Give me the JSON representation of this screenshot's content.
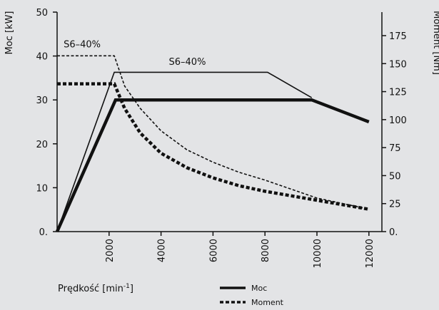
{
  "chart_data": {
    "type": "line",
    "title": "",
    "xlabel": "Prędkość [min",
    "xlabel_sup": "-1",
    "xlabel_close": "]",
    "ylabel_left": "Moc [kW]",
    "ylabel_right": "Moment [Nm]",
    "x_range": [
      0,
      12500
    ],
    "y_left_range": [
      0,
      50
    ],
    "y_right_range": [
      0,
      196
    ],
    "x_ticks": [
      "2000",
      "4000",
      "6000",
      "8000",
      "10000",
      "12000"
    ],
    "y_left_ticks": [
      "0.",
      "10",
      "20",
      "30",
      "40",
      "50"
    ],
    "y_right_ticks": [
      "0.",
      "25",
      "50",
      "75",
      "100",
      "125",
      "150",
      "175"
    ],
    "series": [
      {
        "name": "Moc",
        "axis": "left",
        "style": "solid-thick",
        "x": [
          0,
          2250,
          9800,
          12000
        ],
        "y": [
          0,
          30,
          30,
          25
        ]
      },
      {
        "name": "",
        "axis": "left",
        "style": "solid-thin",
        "x": [
          0,
          2200,
          8100,
          9800
        ],
        "y": [
          0,
          36.3,
          36.3,
          30.5
        ]
      },
      {
        "name": "Moment",
        "axis": "right",
        "style": "dashed-thick",
        "x": [
          0,
          2200,
          2600,
          3200,
          4000,
          5000,
          6000,
          7000,
          8000,
          9000,
          10000,
          11000,
          12000
        ],
        "y": [
          132,
          132,
          110,
          88,
          70,
          57,
          48,
          41,
          36,
          32,
          28,
          24,
          20
        ]
      },
      {
        "name": "",
        "axis": "right",
        "style": "dashed-thin",
        "x": [
          0,
          2200,
          2600,
          3200,
          4000,
          5000,
          6000,
          7000,
          8000,
          9000,
          10000,
          11000,
          12000
        ],
        "y": [
          157,
          157,
          130,
          110,
          90,
          73,
          62,
          53,
          46,
          38,
          30,
          25,
          20
        ]
      }
    ],
    "annotations": [
      {
        "text": "S6–40%",
        "x": 250,
        "y_left": 42
      },
      {
        "text": "S6–40%",
        "x": 4300,
        "y_left": 38
      }
    ],
    "legend": {
      "placement": "bottom-center",
      "items": [
        {
          "label": "Moc",
          "style": "solid-thick"
        },
        {
          "label": "Moment",
          "style": "dashed-thick"
        }
      ]
    },
    "grid": false
  }
}
